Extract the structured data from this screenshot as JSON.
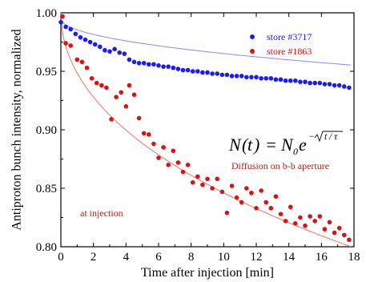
{
  "chart_data": {
    "type": "scatter",
    "xlabel": "Time after injection [min]",
    "ylabel": "Antiproton bunch intensity, normalized",
    "xlim": [
      0,
      18
    ],
    "ylim": [
      0.8,
      1.0
    ],
    "x_ticks": [
      "0",
      "2",
      "4",
      "6",
      "8",
      "10",
      "12",
      "14",
      "16",
      "18"
    ],
    "y_ticks": [
      "0.80",
      "0.85",
      "0.90",
      "0.95",
      "1.00"
    ],
    "legend_position": "top-right",
    "formula_text": "N(t) = N₀e^(−√(t/τ))",
    "annotations": [
      "Diffusion on b-b aperture",
      "at injection"
    ],
    "colors": {
      "store_3717": "#1a1aff",
      "store_1863": "#e01010",
      "fit_blue": "#8888ff",
      "fit_red": "#f07070"
    },
    "series": [
      {
        "name": "store #3717",
        "color": "#1a1aff",
        "x": [
          0.0,
          0.3,
          0.6,
          0.9,
          1.2,
          1.5,
          1.8,
          2.1,
          2.4,
          2.7,
          3.0,
          3.3,
          3.6,
          3.9,
          4.2,
          4.5,
          4.8,
          5.1,
          5.4,
          5.7,
          6.0,
          6.3,
          6.6,
          6.9,
          7.2,
          7.5,
          7.8,
          8.1,
          8.4,
          8.7,
          9.0,
          9.3,
          9.6,
          9.9,
          10.2,
          10.5,
          10.8,
          11.1,
          11.4,
          11.7,
          12.0,
          12.3,
          12.6,
          12.9,
          13.2,
          13.5,
          13.8,
          14.1,
          14.4,
          14.7,
          15.0,
          15.3,
          15.6,
          15.9,
          16.2,
          16.5,
          16.8,
          17.1,
          17.4,
          17.7
        ],
        "y": [
          0.992,
          0.988,
          0.986,
          0.982,
          0.979,
          0.977,
          0.975,
          0.973,
          0.971,
          0.968,
          0.967,
          0.969,
          0.966,
          0.965,
          0.96,
          0.958,
          0.957,
          0.957,
          0.956,
          0.956,
          0.955,
          0.954,
          0.954,
          0.953,
          0.952,
          0.951,
          0.951,
          0.95,
          0.95,
          0.949,
          0.949,
          0.948,
          0.948,
          0.947,
          0.947,
          0.946,
          0.946,
          0.946,
          0.945,
          0.945,
          0.945,
          0.944,
          0.944,
          0.944,
          0.943,
          0.943,
          0.942,
          0.942,
          0.942,
          0.941,
          0.941,
          0.94,
          0.94,
          0.94,
          0.939,
          0.939,
          0.938,
          0.938,
          0.937,
          0.936
        ]
      },
      {
        "name": "store #1863",
        "color": "#e01010",
        "x": [
          0.1,
          0.3,
          0.6,
          1.0,
          1.3,
          1.6,
          1.9,
          2.2,
          2.5,
          2.8,
          3.1,
          3.4,
          3.7,
          4.0,
          4.2,
          4.5,
          4.8,
          5.1,
          5.4,
          5.7,
          6.0,
          6.3,
          6.6,
          6.9,
          7.2,
          7.5,
          7.8,
          8.1,
          8.4,
          8.7,
          9.0,
          9.3,
          9.6,
          9.9,
          10.2,
          10.5,
          10.8,
          11.1,
          11.4,
          11.7,
          12.0,
          12.3,
          12.6,
          12.9,
          13.2,
          13.5,
          13.8,
          14.1,
          14.4,
          14.7,
          15.0,
          15.3,
          15.6,
          15.9,
          16.2,
          16.5,
          16.8,
          17.1,
          17.4,
          17.7
        ],
        "y": [
          0.997,
          0.974,
          0.972,
          0.96,
          0.958,
          0.953,
          0.944,
          0.94,
          0.938,
          0.936,
          0.909,
          0.928,
          0.932,
          0.92,
          0.938,
          0.93,
          0.91,
          0.897,
          0.896,
          0.888,
          0.876,
          0.885,
          0.87,
          0.882,
          0.872,
          0.864,
          0.87,
          0.855,
          0.86,
          0.853,
          0.858,
          0.85,
          0.858,
          0.847,
          0.829,
          0.852,
          0.842,
          0.838,
          0.85,
          0.846,
          0.833,
          0.848,
          0.838,
          0.833,
          0.843,
          0.828,
          0.822,
          0.834,
          0.82,
          0.825,
          0.818,
          0.826,
          0.822,
          0.826,
          0.815,
          0.821,
          0.812,
          0.816,
          0.81,
          0.806
        ]
      }
    ],
    "fits": [
      {
        "series": "store #3717",
        "n0": 0.995,
        "tau_min": 10780
      },
      {
        "series": "store #1863",
        "n0": 1.0,
        "tau_min": 358
      }
    ]
  }
}
